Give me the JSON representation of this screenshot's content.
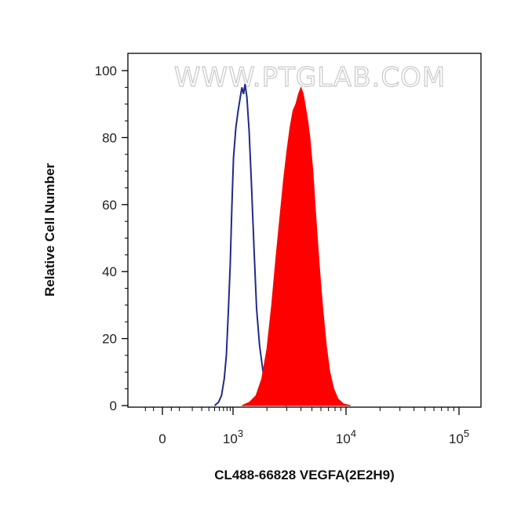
{
  "chart_data": {
    "type": "area",
    "xlabel": "CL488-66828 VEGFA(2E2H9)",
    "ylabel": "Relative Cell Number",
    "watermark": "WWW.PTGLAB.COM",
    "x_scale": "biexponential",
    "y_scale": "linear",
    "ylim": [
      0,
      100
    ],
    "y_ticks": [
      0,
      20,
      40,
      60,
      80,
      100
    ],
    "x_ticks": [
      {
        "value": 0,
        "label": "0",
        "sup": ""
      },
      {
        "value": 1000,
        "label": "10",
        "sup": "3"
      },
      {
        "value": 10000,
        "label": "10",
        "sup": "4"
      },
      {
        "value": 100000,
        "label": "10",
        "sup": "5"
      }
    ],
    "grid": false,
    "series": [
      {
        "style": "outline",
        "color": "#1f2a8c",
        "points": [
          [
            500,
            0
          ],
          [
            580,
            1
          ],
          [
            650,
            3
          ],
          [
            720,
            8
          ],
          [
            780,
            15
          ],
          [
            840,
            28
          ],
          [
            900,
            42
          ],
          [
            960,
            60
          ],
          [
            1010,
            74
          ],
          [
            1060,
            83
          ],
          [
            1110,
            88
          ],
          [
            1160,
            92
          ],
          [
            1200,
            95
          ],
          [
            1240,
            93
          ],
          [
            1280,
            96
          ],
          [
            1330,
            92
          ],
          [
            1390,
            82
          ],
          [
            1460,
            66
          ],
          [
            1540,
            46
          ],
          [
            1620,
            29
          ],
          [
            1720,
            18
          ],
          [
            1850,
            10
          ],
          [
            2000,
            5
          ],
          [
            2200,
            2
          ],
          [
            2500,
            0.5
          ],
          [
            3000,
            0
          ]
        ]
      },
      {
        "style": "filled",
        "color": "#ff0000",
        "points": [
          [
            1200,
            0
          ],
          [
            1400,
            1
          ],
          [
            1600,
            3
          ],
          [
            1800,
            8
          ],
          [
            2000,
            17
          ],
          [
            2200,
            30
          ],
          [
            2400,
            44
          ],
          [
            2600,
            56
          ],
          [
            2800,
            67
          ],
          [
            3000,
            76
          ],
          [
            3200,
            83
          ],
          [
            3400,
            88
          ],
          [
            3600,
            90
          ],
          [
            3800,
            93
          ],
          [
            4000,
            95
          ],
          [
            4200,
            93
          ],
          [
            4400,
            89
          ],
          [
            4600,
            85
          ],
          [
            4800,
            80
          ],
          [
            5100,
            70
          ],
          [
            5400,
            57
          ],
          [
            5800,
            42
          ],
          [
            6200,
            30
          ],
          [
            6700,
            18
          ],
          [
            7200,
            10
          ],
          [
            7800,
            5
          ],
          [
            8500,
            2
          ],
          [
            9500,
            0.5
          ],
          [
            11000,
            0
          ]
        ]
      }
    ]
  }
}
